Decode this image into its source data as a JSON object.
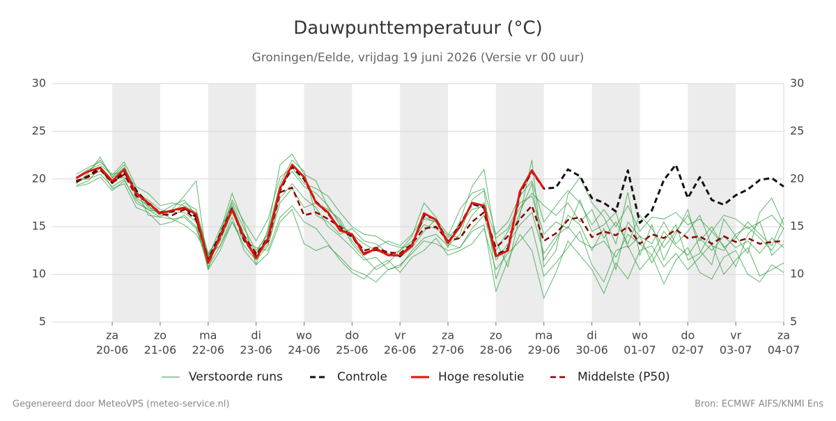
{
  "chart_data": {
    "type": "line",
    "title": "Dauwpunttemperatuur (°C)",
    "subtitle": "Groningen/Eelde, vrijdag 19 juni 2026 (Versie vr 00 uur)",
    "footer_left": "Gegenereerd door MeteoVPS (meteo-service.nl)",
    "footer_right": "Bron: ECMWF AIFS/KNMI Ens",
    "xlim": [
      -0.25,
      15
    ],
    "ylim": [
      5,
      30
    ],
    "yticks": [
      5,
      10,
      15,
      20,
      25,
      30
    ],
    "grid": true,
    "shaded_bands": [
      [
        1,
        2
      ],
      [
        3,
        4
      ],
      [
        5,
        6
      ],
      [
        7,
        8
      ],
      [
        9,
        10
      ],
      [
        11,
        12
      ],
      [
        13,
        14
      ]
    ],
    "xticks": [
      {
        "value": 1,
        "label": "za",
        "date": "20-06"
      },
      {
        "value": 2,
        "label": "zo",
        "date": "21-06"
      },
      {
        "value": 3,
        "label": "ma",
        "date": "22-06"
      },
      {
        "value": 4,
        "label": "di",
        "date": "23-06"
      },
      {
        "value": 5,
        "label": "wo",
        "date": "24-06"
      },
      {
        "value": 6,
        "label": "do",
        "date": "25-06"
      },
      {
        "value": 7,
        "label": "vr",
        "date": "26-06"
      },
      {
        "value": 8,
        "label": "za",
        "date": "27-06"
      },
      {
        "value": 9,
        "label": "zo",
        "date": "28-06"
      },
      {
        "value": 10,
        "label": "ma",
        "date": "29-06"
      },
      {
        "value": 11,
        "label": "di",
        "date": "30-06"
      },
      {
        "value": 12,
        "label": "wo",
        "date": "01-07"
      },
      {
        "value": 13,
        "label": "do",
        "date": "02-07"
      },
      {
        "value": 14,
        "label": "vr",
        "date": "03-07"
      },
      {
        "value": 15,
        "label": "za",
        "date": "04-07"
      }
    ],
    "x": [
      0.25,
      0.5,
      0.75,
      1,
      1.25,
      1.5,
      1.75,
      2,
      2.25,
      2.5,
      2.75,
      3,
      3.25,
      3.5,
      3.75,
      4,
      4.25,
      4.5,
      4.75,
      5,
      5.25,
      5.5,
      5.75,
      6,
      6.25,
      6.5,
      6.75,
      7,
      7.25,
      7.5,
      7.75,
      8,
      8.25,
      8.5,
      8.75,
      9,
      9.25,
      9.5,
      9.75,
      10,
      10.25,
      10.5,
      10.75,
      11,
      11.25,
      11.5,
      11.75,
      12,
      12.25,
      12.5,
      12.75,
      13,
      13.25,
      13.5,
      13.75,
      14,
      14.25,
      14.5,
      14.75,
      15
    ],
    "members": {
      "name": "Verstoorde runs",
      "color": "#2e9e3e",
      "runs": [
        [
          19.5,
          20.6,
          22.3,
          20.1,
          21.2,
          19.0,
          16.2,
          16.0,
          16.8,
          18.2,
          19.8,
          10.5,
          14.5,
          18.5,
          15.2,
          11.0,
          14.8,
          21.5,
          22.6,
          20.5,
          19.8,
          17.0,
          15.5,
          13.2,
          11.8,
          10.5,
          11.2,
          12.5,
          14.0,
          17.5,
          16.0,
          12.8,
          15.6,
          19.2,
          21.0,
          13.5,
          10.8,
          16.2,
          22.0,
          10.8,
          12.5,
          18.4,
          20.2,
          17.5,
          16.0,
          13.2,
          18.6,
          12.0,
          15.2,
          11.5,
          14.2,
          16.8,
          12.5,
          11.0,
          15.8,
          14.0,
          12.2,
          16.5,
          18.0,
          15.2
        ],
        [
          19.9,
          20.0,
          20.5,
          19.2,
          20.0,
          17.5,
          16.8,
          16.5,
          15.8,
          15.2,
          14.2,
          12.0,
          13.0,
          15.5,
          13.5,
          12.8,
          12.5,
          16.0,
          17.2,
          15.5,
          14.8,
          13.2,
          11.5,
          10.2,
          9.5,
          10.8,
          11.5,
          10.2,
          11.8,
          12.5,
          13.8,
          12.0,
          12.5,
          13.2,
          14.8,
          10.5,
          12.2,
          13.5,
          15.0,
          9.8,
          11.2,
          12.8,
          14.5,
          11.0,
          9.2,
          12.5,
          13.0,
          10.5,
          12.0,
          9.0,
          11.5,
          12.8,
          10.2,
          9.5,
          11.8,
          12.5,
          10.0,
          9.2,
          11.0,
          10.2
        ],
        [
          20.2,
          21.0,
          21.5,
          20.4,
          21.8,
          19.2,
          18.5,
          17.2,
          17.5,
          17.2,
          16.5,
          12.0,
          14.2,
          17.8,
          15.5,
          13.5,
          15.8,
          20.2,
          21.2,
          19.5,
          19.0,
          18.2,
          16.5,
          15.0,
          14.2,
          14.0,
          13.2,
          12.8,
          13.0,
          15.8,
          15.5,
          14.0,
          16.8,
          18.5,
          19.0,
          14.2,
          15.5,
          18.2,
          19.8,
          15.5,
          17.2,
          18.8,
          17.5,
          15.2,
          16.8,
          15.0,
          17.2,
          14.5,
          16.0,
          15.8,
          16.5,
          15.2,
          15.8,
          14.5,
          16.2,
          15.8,
          14.8,
          15.5,
          16.2,
          14.8
        ],
        [
          19.3,
          19.8,
          21.2,
          19.0,
          19.5,
          17.0,
          16.5,
          15.2,
          15.5,
          16.2,
          15.0,
          10.8,
          13.0,
          16.0,
          12.5,
          11.0,
          12.2,
          15.5,
          16.8,
          13.2,
          12.5,
          13.0,
          11.8,
          10.5,
          10.0,
          9.2,
          10.5,
          11.0,
          12.2,
          13.5,
          13.2,
          12.5,
          12.8,
          14.5,
          15.2,
          8.2,
          11.5,
          14.2,
          12.5,
          7.5,
          10.2,
          13.5,
          12.0,
          10.5,
          8.0,
          11.2,
          9.5,
          12.5,
          13.0,
          10.8,
          12.2,
          10.5,
          11.8,
          13.2,
          10.0,
          11.5,
          12.8,
          9.8,
          10.5,
          11.2
        ],
        [
          19.6,
          20.4,
          20.8,
          19.9,
          20.2,
          18.8,
          17.0,
          16.5,
          17.2,
          17.8,
          16.2,
          11.8,
          14.8,
          17.2,
          14.2,
          12.2,
          14.5,
          19.5,
          22.0,
          20.8,
          16.2,
          15.5,
          14.2,
          14.8,
          13.5,
          13.2,
          12.2,
          11.8,
          12.8,
          14.5,
          15.8,
          14.2,
          13.8,
          16.2,
          17.5,
          13.8,
          14.8,
          17.5,
          18.2,
          14.2,
          15.5,
          14.8,
          17.8,
          14.5,
          15.2,
          16.5,
          12.8,
          14.0,
          13.2,
          15.5,
          13.2,
          14.5,
          16.2,
          13.0,
          12.5,
          14.2,
          15.0,
          13.8,
          12.5,
          14.8
        ],
        [
          20.0,
          20.8,
          22.0,
          20.2,
          21.5,
          18.0,
          17.2,
          16.2,
          16.5,
          16.5,
          15.5,
          10.5,
          12.5,
          15.5,
          13.0,
          11.5,
          13.0,
          17.5,
          19.0,
          17.0,
          17.5,
          16.8,
          15.8,
          13.5,
          12.0,
          12.8,
          13.5,
          13.0,
          14.2,
          16.0,
          15.5,
          13.2,
          12.8,
          14.8,
          16.2,
          11.5,
          13.2,
          15.2,
          16.5,
          12.2,
          14.0,
          15.0,
          13.5,
          12.8,
          13.5,
          11.8,
          14.2,
          13.2,
          12.0,
          14.5,
          13.0,
          12.0,
          13.8,
          12.5,
          14.0,
          12.8,
          13.5,
          12.2,
          13.8,
          12.8
        ],
        [
          19.2,
          19.5,
          20.2,
          18.8,
          19.8,
          17.8,
          16.8,
          16.0,
          15.8,
          16.0,
          14.8,
          11.2,
          13.5,
          16.5,
          13.8,
          11.8,
          13.2,
          18.0,
          19.5,
          18.0,
          17.0,
          15.0,
          14.0,
          12.8,
          11.5,
          11.8,
          10.5,
          10.8,
          12.5,
          13.8,
          14.2,
          13.0,
          14.2,
          17.8,
          18.8,
          9.5,
          13.0,
          16.5,
          19.5,
          11.5,
          13.5,
          16.2,
          15.2,
          12.5,
          14.8,
          10.5,
          15.5,
          14.0,
          11.2,
          13.5,
          15.2,
          11.5,
          12.2,
          14.5,
          13.0,
          10.8,
          14.2,
          15.5,
          12.0,
          13.2
        ],
        [
          20.5,
          21.2,
          21.8,
          20.5,
          20.8,
          18.5,
          17.8,
          16.8,
          16.5,
          17.5,
          16.8,
          12.2,
          14.0,
          17.5,
          14.8,
          12.5,
          14.2,
          19.2,
          20.8,
          19.2,
          18.5,
          17.2,
          15.2,
          14.2,
          13.2,
          12.5,
          12.0,
          12.5,
          13.5,
          15.2,
          14.8,
          13.8,
          15.2,
          16.8,
          17.2,
          12.5,
          14.5,
          17.0,
          18.5,
          17.2,
          16.2,
          17.5,
          15.5,
          16.8,
          13.8,
          15.5,
          13.2,
          16.2,
          14.8,
          12.8,
          14.5,
          16.2,
          13.5,
          15.0,
          12.8,
          13.8,
          15.5,
          14.2,
          13.0,
          16.0
        ]
      ]
    },
    "series": [
      {
        "name": "Controle",
        "color": "#111111",
        "style": "dashed",
        "width": 3,
        "values": [
          19.7,
          20.3,
          21.2,
          19.6,
          20.7,
          18.8,
          17.4,
          16.5,
          16.6,
          17.0,
          16.0,
          11.5,
          14.2,
          16.9,
          13.6,
          11.9,
          13.9,
          18.8,
          21.3,
          20.0,
          17.6,
          16.4,
          14.7,
          14.0,
          12.2,
          12.6,
          12.1,
          11.9,
          13.1,
          16.2,
          15.8,
          13.3,
          15.2,
          17.4,
          17.0,
          12.0,
          12.7,
          18.5,
          20.8,
          19.0,
          19.1,
          21.0,
          20.3,
          18.0,
          17.5,
          16.6,
          20.9,
          15.4,
          16.7,
          19.9,
          21.5,
          18.0,
          20.2,
          17.8,
          17.3,
          18.3,
          18.9,
          19.9,
          20.1,
          19.2
        ]
      },
      {
        "name": "Hoge resolutie",
        "color": "#e3120b",
        "style": "solid",
        "width": 3,
        "values": [
          20.1,
          20.8,
          21.2,
          19.8,
          21.0,
          18.5,
          17.5,
          16.4,
          16.7,
          17.0,
          16.3,
          11.2,
          14.0,
          16.8,
          13.8,
          11.7,
          13.8,
          19.0,
          21.5,
          20.2,
          17.5,
          16.5,
          14.6,
          14.2,
          12.1,
          12.7,
          12.0,
          12.0,
          13.0,
          16.4,
          15.7,
          13.3,
          15.0,
          17.5,
          17.2,
          11.9,
          12.5,
          18.7,
          20.9,
          19.0,
          null,
          null,
          null,
          null,
          null,
          null,
          null,
          null,
          null,
          null,
          null,
          null,
          null,
          null,
          null,
          null,
          null,
          null,
          null,
          null
        ]
      },
      {
        "name": "Middelste (P50)",
        "color": "#8b0000",
        "style": "dashed",
        "width": 2.5,
        "values": [
          19.8,
          20.2,
          21.0,
          19.6,
          20.5,
          18.2,
          17.6,
          16.3,
          16.2,
          16.8,
          15.7,
          11.5,
          13.8,
          16.8,
          14.0,
          12.2,
          13.5,
          18.6,
          19.1,
          16.2,
          16.5,
          15.8,
          15.0,
          14.0,
          12.5,
          12.8,
          12.3,
          12.2,
          13.2,
          14.8,
          15.0,
          13.5,
          13.8,
          15.5,
          16.5,
          12.8,
          14.0,
          15.8,
          17.2,
          13.5,
          14.3,
          15.7,
          16.0,
          13.9,
          14.5,
          14.1,
          15.0,
          13.2,
          14.2,
          13.8,
          14.7,
          13.8,
          14.0,
          13.2,
          14.0,
          13.4,
          13.8,
          13.2,
          13.4,
          13.5
        ]
      }
    ]
  }
}
